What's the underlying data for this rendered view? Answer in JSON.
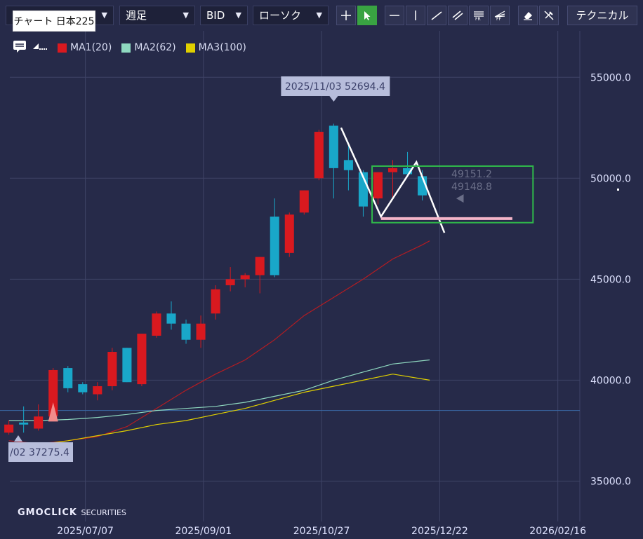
{
  "toolbar": {
    "symbol_label": "チャート 日本225",
    "period": "週足",
    "price_type": "BID",
    "chart_type": "ローソク",
    "technical_label": "テクニカル",
    "tools": [
      "crosshair-icon",
      "pointer-icon",
      "horizontal-line-icon",
      "vertical-line-icon",
      "trend-line-icon",
      "channel-icon",
      "fibonacci-retracement-icon",
      "fibonacci-fan-icon",
      "eraser-icon",
      "hide-drawings-icon"
    ]
  },
  "legend": [
    {
      "name": "MA1(20)",
      "color": "#d9191f"
    },
    {
      "name": "MA2(62)",
      "color": "#8fd9c0"
    },
    {
      "name": "MA3(100)",
      "color": "#e0d000"
    }
  ],
  "colors": {
    "background": "#262a49",
    "up": "#d9191f",
    "down": "#19a7c9",
    "grid": "#3e4366",
    "ma1": "#b51c22",
    "ma2": "#8fd9c0",
    "ma3": "#e0d000",
    "selection_box": "#2fb84a",
    "pink_line": "#f4b5c9",
    "drawing": "#ffffff"
  },
  "chart_data": {
    "type": "candlestick",
    "title": "",
    "ylim": [
      33000,
      57300
    ],
    "yticks": [
      35000,
      40000,
      45000,
      50000,
      55000
    ],
    "ytick_labels": [
      "35000.0",
      "40000.0",
      "45000.0",
      "50000.0",
      "55000.0"
    ],
    "x_ticks": [
      {
        "label": "2025/07/07",
        "index": 5.18
      },
      {
        "label": "2025/09/01",
        "index": 13.18
      },
      {
        "label": "2025/10/27",
        "index": 21.18
      },
      {
        "label": "2025/12/22",
        "index": 29.18
      },
      {
        "label": "2026/02/16",
        "index": 37.18
      }
    ],
    "x_range": [
      -0.6,
      38.67
    ],
    "candles": [
      {
        "o": 37400,
        "h": 38000,
        "l": 37300,
        "c": 37800
      },
      {
        "o": 37900,
        "h": 38700,
        "l": 37400,
        "c": 37800
      },
      {
        "o": 37600,
        "h": 38800,
        "l": 37500,
        "c": 38200
      },
      {
        "o": 38200,
        "h": 40600,
        "l": 38000,
        "c": 40500
      },
      {
        "o": 40600,
        "h": 40700,
        "l": 39400,
        "c": 39600
      },
      {
        "o": 39800,
        "h": 39900,
        "l": 39300,
        "c": 39400
      },
      {
        "o": 39300,
        "h": 39900,
        "l": 39000,
        "c": 39700
      },
      {
        "o": 39700,
        "h": 41600,
        "l": 39500,
        "c": 41400
      },
      {
        "o": 41600,
        "h": 41600,
        "l": 39900,
        "c": 39900
      },
      {
        "o": 39800,
        "h": 42300,
        "l": 39700,
        "c": 42300
      },
      {
        "o": 42200,
        "h": 43400,
        "l": 42100,
        "c": 43300
      },
      {
        "o": 43300,
        "h": 43900,
        "l": 42500,
        "c": 42800
      },
      {
        "o": 42800,
        "h": 43000,
        "l": 41800,
        "c": 42000
      },
      {
        "o": 42000,
        "h": 43200,
        "l": 41600,
        "c": 42800
      },
      {
        "o": 43300,
        "h": 44700,
        "l": 43000,
        "c": 44500
      },
      {
        "o": 44700,
        "h": 45600,
        "l": 44400,
        "c": 45000
      },
      {
        "o": 45000,
        "h": 45300,
        "l": 44600,
        "c": 45200
      },
      {
        "o": 45200,
        "h": 46100,
        "l": 44300,
        "c": 46100
      },
      {
        "o": 48100,
        "h": 49000,
        "l": 45100,
        "c": 45200
      },
      {
        "o": 46300,
        "h": 48300,
        "l": 46100,
        "c": 48200
      },
      {
        "o": 48300,
        "h": 49400,
        "l": 48200,
        "c": 49400
      },
      {
        "o": 50000,
        "h": 52400,
        "l": 49900,
        "c": 52300
      },
      {
        "o": 52600,
        "h": 52700,
        "l": 49000,
        "c": 50500
      },
      {
        "o": 50900,
        "h": 51600,
        "l": 49400,
        "c": 50400
      },
      {
        "o": 50300,
        "h": 50400,
        "l": 48100,
        "c": 48600
      },
      {
        "o": 49000,
        "h": 50300,
        "l": 48700,
        "c": 50300
      },
      {
        "o": 50300,
        "h": 50900,
        "l": 49000,
        "c": 50500
      },
      {
        "o": 50500,
        "h": 51300,
        "l": 50100,
        "c": 50200
      },
      {
        "o": 50100,
        "h": 50400,
        "l": 48900,
        "c": 49151.2
      }
    ],
    "ma1": [
      [
        0,
        37000
      ],
      [
        2,
        36850
      ],
      [
        4,
        37000
      ],
      [
        6,
        37200
      ],
      [
        8,
        37700
      ],
      [
        10,
        38600
      ],
      [
        12,
        39500
      ],
      [
        14,
        40300
      ],
      [
        16,
        41000
      ],
      [
        18,
        42000
      ],
      [
        20,
        43200
      ],
      [
        22,
        44100
      ],
      [
        24,
        45000
      ],
      [
        26,
        46000
      ],
      [
        28,
        46700
      ],
      [
        28.5,
        46900
      ]
    ],
    "ma2": [
      [
        0,
        38000
      ],
      [
        2,
        38000
      ],
      [
        4,
        38050
      ],
      [
        6,
        38150
      ],
      [
        8,
        38300
      ],
      [
        10,
        38500
      ],
      [
        12,
        38600
      ],
      [
        14,
        38700
      ],
      [
        16,
        38900
      ],
      [
        18,
        39200
      ],
      [
        20,
        39500
      ],
      [
        22,
        40000
      ],
      [
        24,
        40400
      ],
      [
        26,
        40800
      ],
      [
        28.5,
        41000
      ]
    ],
    "ma3": [
      [
        0,
        36700
      ],
      [
        2,
        36800
      ],
      [
        4,
        37000
      ],
      [
        6,
        37250
      ],
      [
        8,
        37500
      ],
      [
        10,
        37800
      ],
      [
        12,
        38000
      ],
      [
        14,
        38300
      ],
      [
        16,
        38600
      ],
      [
        18,
        39000
      ],
      [
        20,
        39400
      ],
      [
        22,
        39700
      ],
      [
        24,
        40000
      ],
      [
        26,
        40300
      ],
      [
        28.5,
        40000
      ]
    ],
    "horizontal_line": 38500,
    "high_label": "2025/11/03 52694.4",
    "low_label": "/02 37275.4",
    "price_label_1": "49151.2",
    "price_label_2": "49148.8"
  },
  "brand": {
    "name": "GMOCLICK",
    "suffix": "SECURITIES"
  }
}
